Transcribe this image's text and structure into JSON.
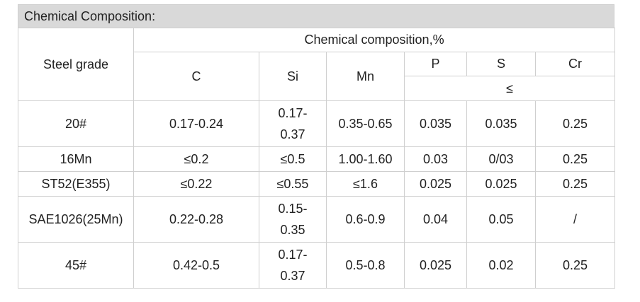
{
  "title": "Chemical Composition:",
  "header": {
    "steel_grade": "Steel grade",
    "group": "Chemical composition,%",
    "c": "C",
    "si": "Si",
    "mn": "Mn",
    "p": "P",
    "s": "S",
    "cr": "Cr",
    "le": "≤"
  },
  "rows": [
    {
      "grade": "20#",
      "c": "0.17-0.24",
      "si": "0.17-\n0.37",
      "mn": "0.35-0.65",
      "p": "0.035",
      "s": "0.035",
      "cr": "0.25"
    },
    {
      "grade": "16Mn",
      "c": "≤0.2",
      "si": "≤0.5",
      "mn": "1.00-1.60",
      "p": "0.03",
      "s": "0/03",
      "cr": "0.25"
    },
    {
      "grade": "ST52(E355)",
      "c": "≤0.22",
      "si": "≤0.55",
      "mn": "≤1.6",
      "p": "0.025",
      "s": "0.025",
      "cr": "0.25"
    },
    {
      "grade": "SAE1026(25Mn)",
      "c": "0.22-0.28",
      "si": "0.15-\n0.35",
      "mn": "0.6-0.9",
      "p": "0.04",
      "s": "0.05",
      "cr": "/"
    },
    {
      "grade": "45#",
      "c": "0.42-0.5",
      "si": "0.17-\n0.37",
      "mn": "0.5-0.8",
      "p": "0.025",
      "s": "0.02",
      "cr": "0.25"
    }
  ]
}
